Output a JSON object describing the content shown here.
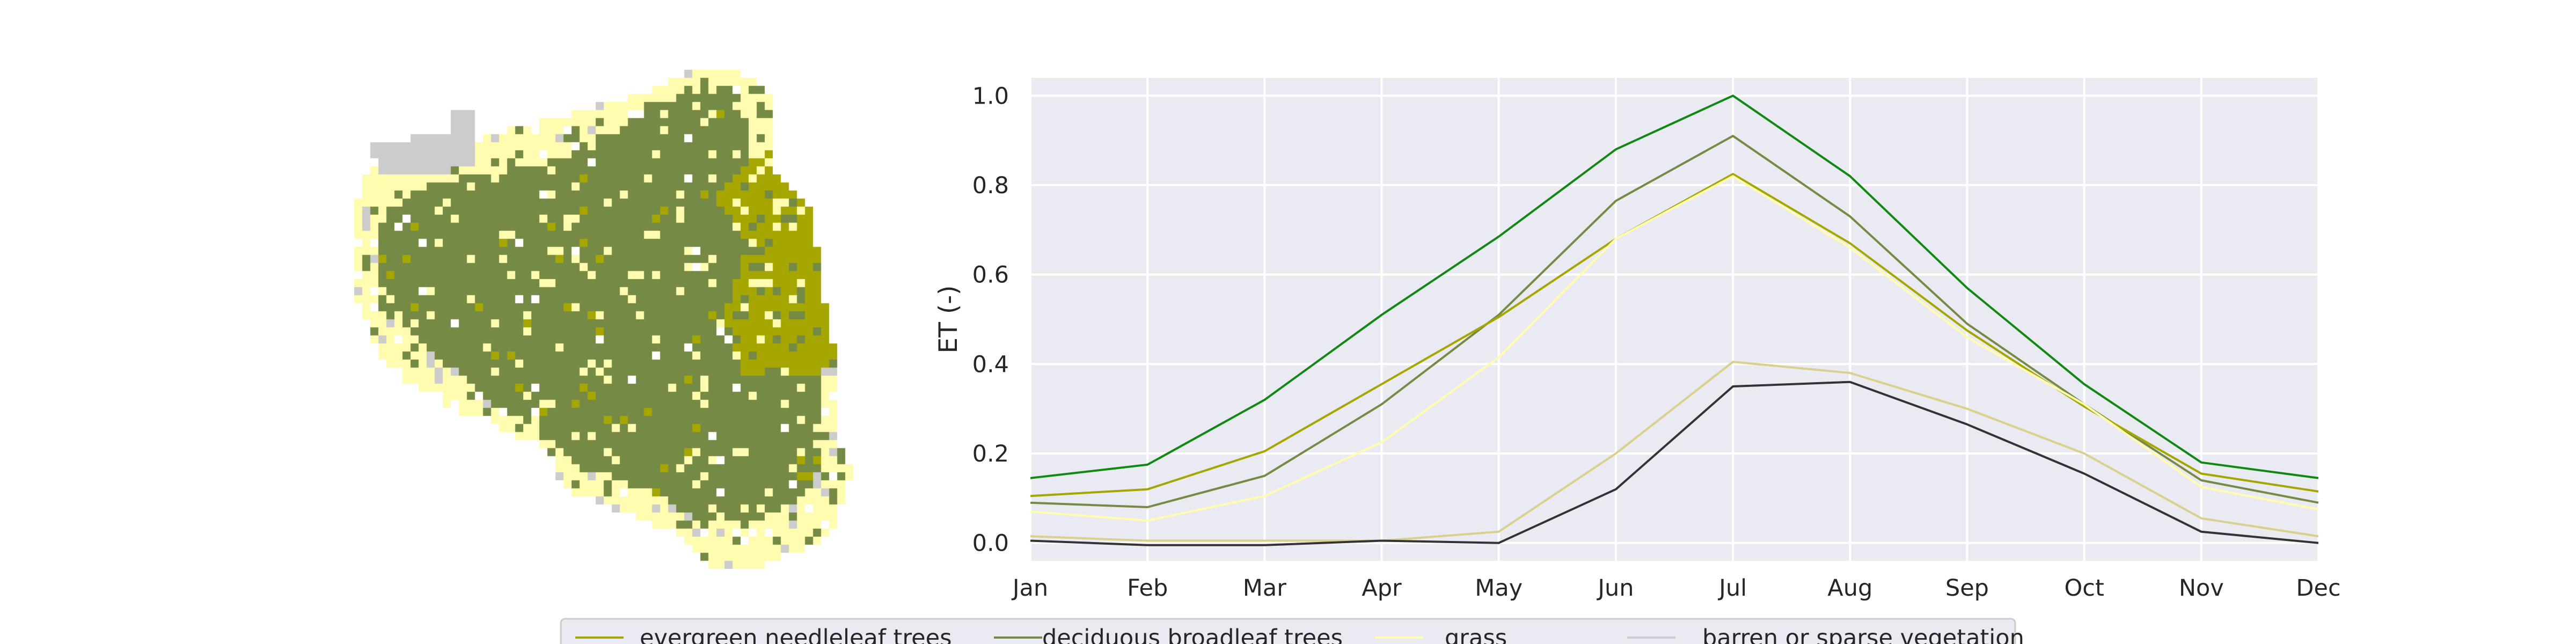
{
  "colors": {
    "plot_bg": "#eaeaf2",
    "grid": "#ffffff",
    "evergreen": "#a6a600",
    "deciduous": "#758b45",
    "grass": "#fffcb0",
    "barren": "#cccccc",
    "line_green": "#118811",
    "line_dark": "#333333",
    "line_tan": "#d9d08c"
  },
  "map": {
    "land_cover_palette": [
      "#758b45",
      "#a6a600",
      "#fffcb0",
      "#cccccc"
    ]
  },
  "chart_data": {
    "type": "line",
    "categories": [
      "Jan",
      "Feb",
      "Mar",
      "Apr",
      "May",
      "Jun",
      "Jul",
      "Aug",
      "Sep",
      "Oct",
      "Nov",
      "Dec"
    ],
    "ylabel": "ET (-)",
    "xlabel": "",
    "ylim": [
      -0.04,
      1.04
    ],
    "yticks": [
      "0.0",
      "0.2",
      "0.4",
      "0.6",
      "0.8",
      "1.0"
    ],
    "grid": true,
    "series": [
      {
        "key": "green",
        "color": "#118811",
        "width": 4,
        "values": [
          0.145,
          0.175,
          0.32,
          0.51,
          0.685,
          0.88,
          1.0,
          0.82,
          0.57,
          0.355,
          0.18,
          0.145
        ]
      },
      {
        "key": "deciduous",
        "color": "#758b45",
        "width": 4,
        "values": [
          0.09,
          0.08,
          0.15,
          0.31,
          0.51,
          0.765,
          0.91,
          0.73,
          0.49,
          0.31,
          0.14,
          0.09
        ]
      },
      {
        "key": "evergreen",
        "color": "#a6a600",
        "width": 4,
        "values": [
          0.105,
          0.12,
          0.205,
          0.355,
          0.505,
          0.68,
          0.825,
          0.67,
          0.475,
          0.305,
          0.155,
          0.115
        ]
      },
      {
        "key": "grass",
        "color": "#fffcb0",
        "width": 4,
        "values": [
          0.07,
          0.05,
          0.105,
          0.225,
          0.415,
          0.68,
          0.82,
          0.66,
          0.46,
          0.31,
          0.125,
          0.075
        ]
      },
      {
        "key": "tan",
        "color": "#d9d08c",
        "width": 4,
        "values": [
          0.015,
          0.005,
          0.005,
          0.005,
          0.025,
          0.2,
          0.405,
          0.38,
          0.3,
          0.2,
          0.055,
          0.015
        ]
      },
      {
        "key": "dark",
        "color": "#333333",
        "width": 4,
        "values": [
          0.005,
          -0.005,
          -0.005,
          0.005,
          0.0,
          0.12,
          0.35,
          0.36,
          0.265,
          0.155,
          0.025,
          0.0
        ]
      }
    ]
  },
  "legend": {
    "items": [
      {
        "label": "evergreen needleleaf trees",
        "color": "#a6a600"
      },
      {
        "label": "deciduous broadleaf trees",
        "color": "#758b45"
      },
      {
        "label": "grass",
        "color": "#fffcb0"
      },
      {
        "label": "barren or sparse vegetation",
        "color": "#cccccc"
      }
    ]
  }
}
